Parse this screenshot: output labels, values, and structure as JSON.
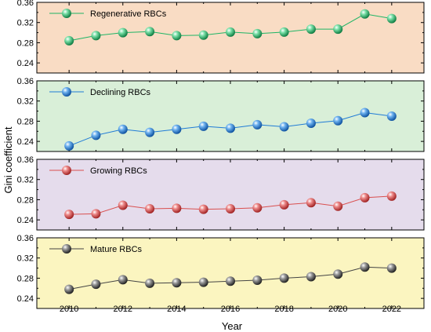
{
  "chart_data": {
    "type": "line",
    "xlabel": "Year",
    "ylabel": "Gini coefficient",
    "x": [
      2010,
      2011,
      2012,
      2013,
      2014,
      2015,
      2016,
      2017,
      2018,
      2019,
      2020,
      2021,
      2022
    ],
    "x_ticks": [
      "2010",
      "2012",
      "2014",
      "2016",
      "2018",
      "2020",
      "2022"
    ],
    "xlim": [
      2008.8,
      2023.2
    ],
    "ylim": [
      0.22,
      0.36
    ],
    "y_ticks": [
      "0.24",
      "0.28",
      "0.32",
      "0.36"
    ],
    "legend_position": "top-left",
    "panels": [
      {
        "name": "Regenerative RBCs",
        "background": "#f9dcc4",
        "marker_color": "#1fb565",
        "line_color": "#1fb565",
        "values": [
          0.284,
          0.294,
          0.3,
          0.302,
          0.294,
          0.295,
          0.301,
          0.298,
          0.301,
          0.307,
          0.307,
          0.337,
          0.328
        ]
      },
      {
        "name": "Declining RBCs",
        "background": "#d9efd8",
        "marker_color": "#1f7bd6",
        "line_color": "#1f7bd6",
        "values": [
          0.231,
          0.252,
          0.264,
          0.258,
          0.264,
          0.27,
          0.266,
          0.273,
          0.269,
          0.276,
          0.281,
          0.297,
          0.29
        ]
      },
      {
        "name": "Growing RBCs",
        "background": "#e5dcec",
        "marker_color": "#d94f4f",
        "line_color": "#d94f4f",
        "values": [
          0.251,
          0.252,
          0.269,
          0.262,
          0.263,
          0.261,
          0.262,
          0.264,
          0.27,
          0.274,
          0.267,
          0.284,
          0.287
        ]
      },
      {
        "name": "Mature RBCs",
        "background": "#fbf5c0",
        "marker_color": "#555555",
        "line_color": "#444444",
        "values": [
          0.258,
          0.268,
          0.277,
          0.27,
          0.271,
          0.272,
          0.274,
          0.276,
          0.28,
          0.283,
          0.288,
          0.302,
          0.3
        ]
      }
    ]
  }
}
